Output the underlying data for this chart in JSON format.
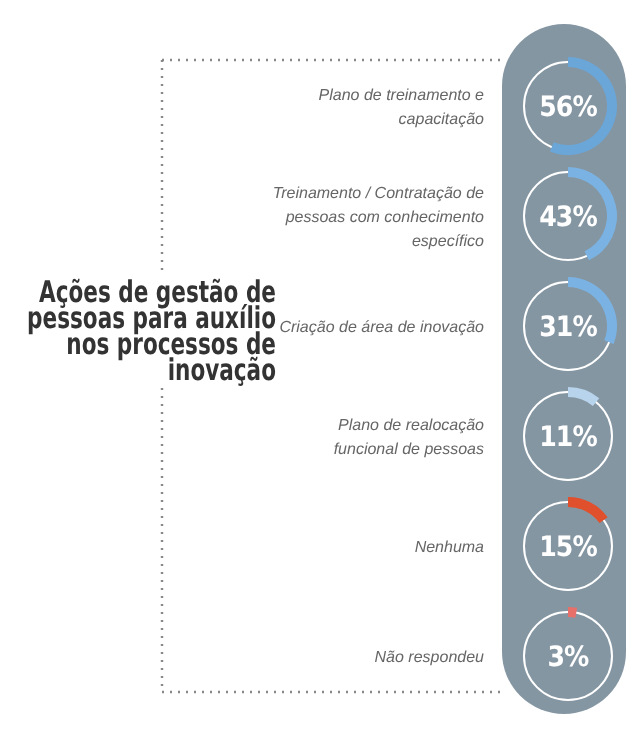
{
  "chart_data": {
    "type": "other",
    "title": "Ações de gestão de pessoas para auxílio nos processos de inovação",
    "categories": [
      "Plano de treinamento e capacitação",
      "Treinamento / Contratação de pessoas com conhecimento específico",
      "Criação de área de inovação",
      "Plano de realocação funcional de pessoas",
      "Nenhuma",
      "Não respondeu"
    ],
    "values": [
      56,
      43,
      31,
      11,
      15,
      3
    ],
    "value_labels": [
      "56%",
      "43%",
      "31%",
      "11%",
      "15%",
      "3%"
    ]
  }
}
